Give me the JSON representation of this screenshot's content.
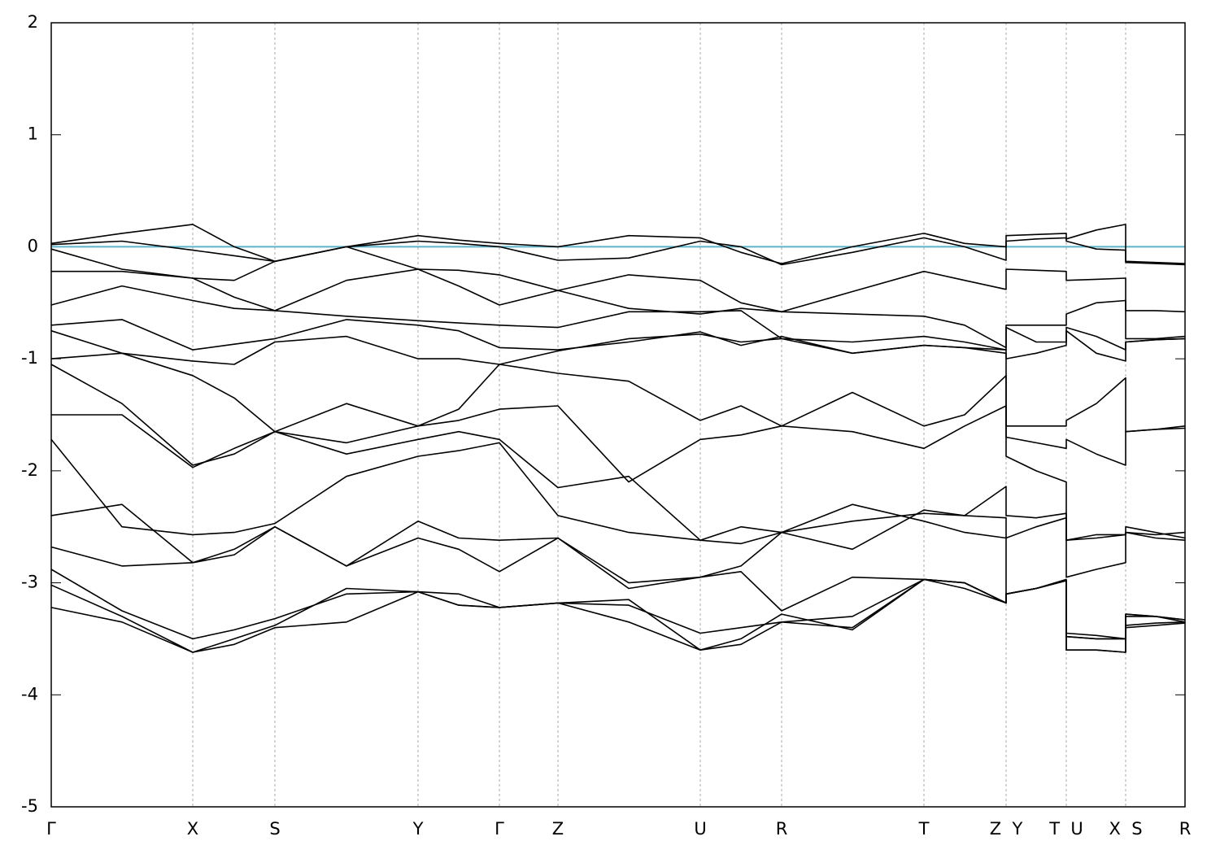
{
  "chart_data": {
    "type": "line",
    "x": [
      0,
      0.87,
      1.74,
      2.25,
      2.75,
      3.63,
      4.51,
      5.01,
      5.51,
      6.23,
      7.1,
      7.98,
      8.48,
      8.98,
      9.85,
      10.73,
      11.23,
      11.74,
      11.74,
      12.11,
      12.48,
      12.48,
      12.85,
      13.21,
      13.21,
      13.58,
      13.94
    ],
    "xlim": [
      0,
      13.94
    ],
    "xticks": [
      {
        "value": 0,
        "label": "Γ"
      },
      {
        "value": 1.74,
        "label": "X"
      },
      {
        "value": 2.75,
        "label": "S"
      },
      {
        "value": 4.51,
        "label": "Y"
      },
      {
        "value": 5.51,
        "label": "Γ"
      },
      {
        "value": 6.23,
        "label": "Z"
      },
      {
        "value": 7.98,
        "label": "U"
      },
      {
        "value": 8.98,
        "label": "R"
      },
      {
        "value": 10.73,
        "label": "T"
      },
      {
        "value": 11.74,
        "label": "Z  Y"
      },
      {
        "value": 12.48,
        "label": "T  U"
      },
      {
        "value": 13.21,
        "label": "X  S"
      },
      {
        "value": 13.94,
        "label": "R"
      }
    ],
    "ylim": [
      -5,
      2
    ],
    "yticks": [
      -5,
      -4,
      -3,
      -2,
      -1,
      0,
      1,
      2
    ],
    "grid": true,
    "fermi_level": 0,
    "fermi_color": "#5fb3c9",
    "series": [
      {
        "color": "#000000",
        "values": [
          0.03,
          0.12,
          0.2,
          0.0,
          -0.13,
          0.0,
          0.1,
          0.06,
          0.03,
          0.0,
          0.1,
          0.08,
          -0.05,
          -0.15,
          0.0,
          0.12,
          0.03,
          0.0,
          0.1,
          0.11,
          0.12,
          0.07,
          0.15,
          0.2,
          -0.13,
          -0.14,
          -0.15
        ]
      },
      {
        "color": "#000000",
        "values": [
          0.02,
          0.05,
          -0.03,
          -0.08,
          -0.13,
          0.0,
          0.05,
          0.03,
          0.0,
          -0.12,
          -0.1,
          0.05,
          0.0,
          -0.16,
          -0.05,
          0.08,
          0.0,
          -0.12,
          0.05,
          0.07,
          0.08,
          0.05,
          -0.02,
          -0.03,
          -0.14,
          -0.15,
          -0.16
        ]
      },
      {
        "color": "#000000",
        "values": [
          -0.02,
          -0.2,
          -0.28,
          -0.45,
          -0.57,
          -0.3,
          -0.2,
          -0.21,
          -0.25,
          -0.39,
          -0.25,
          -0.3,
          -0.5,
          -0.58,
          -0.4,
          -0.22,
          -0.3,
          -0.38,
          -0.2,
          -0.21,
          -0.22,
          -0.3,
          -0.29,
          -0.28,
          -0.57,
          -0.57,
          -0.58
        ]
      },
      {
        "color": "#000000",
        "values": [
          -0.22,
          -0.22,
          -0.28,
          -0.3,
          -0.13,
          0.0,
          -0.2,
          -0.35,
          -0.52,
          -0.39,
          -0.55,
          -0.6,
          -0.55,
          -0.58,
          -0.6,
          -0.62,
          -0.7,
          -0.9,
          -0.7,
          -0.7,
          -0.7,
          -0.6,
          -0.5,
          -0.48,
          -0.82,
          -0.82,
          -0.8
        ]
      },
      {
        "color": "#000000",
        "values": [
          -0.52,
          -0.35,
          -0.48,
          -0.55,
          -0.57,
          -0.62,
          -0.66,
          -0.68,
          -0.7,
          -0.72,
          -0.58,
          -0.58,
          -0.57,
          -0.82,
          -0.85,
          -0.8,
          -0.85,
          -0.92,
          -0.72,
          -0.85,
          -0.85,
          -0.72,
          -0.8,
          -0.92,
          -0.85,
          -0.83,
          -0.82
        ]
      },
      {
        "color": "#000000",
        "values": [
          -0.7,
          -0.65,
          -0.92,
          -0.87,
          -0.82,
          -0.65,
          -0.7,
          -0.75,
          -0.9,
          -0.92,
          -0.85,
          -0.76,
          -0.88,
          -0.8,
          -0.95,
          -0.88,
          -0.9,
          -0.92,
          -1.0,
          -0.95,
          -0.88,
          -0.75,
          -0.95,
          -1.02,
          -0.85,
          -0.83,
          -0.82
        ]
      },
      {
        "color": "#000000",
        "values": [
          -0.75,
          -0.95,
          -1.02,
          -1.05,
          -0.85,
          -0.8,
          -1.0,
          -1.0,
          -1.05,
          -0.93,
          -0.82,
          -0.78,
          -0.85,
          -0.82,
          -0.95,
          -0.88,
          -0.9,
          -0.95,
          -1.6,
          -1.6,
          -1.6,
          -1.55,
          -1.4,
          -1.17,
          -1.65,
          -1.63,
          -1.6
        ]
      },
      {
        "color": "#000000",
        "values": [
          -1.0,
          -0.95,
          -1.15,
          -1.35,
          -1.65,
          -1.4,
          -1.6,
          -1.45,
          -1.05,
          -1.13,
          -1.2,
          -1.55,
          -1.42,
          -1.6,
          -1.3,
          -1.6,
          -1.5,
          -1.15,
          -1.7,
          -1.75,
          -1.8,
          -1.72,
          -1.85,
          -1.95,
          -1.65,
          -1.63,
          -1.62
        ]
      },
      {
        "color": "#000000",
        "values": [
          -1.05,
          -1.4,
          -1.95,
          -1.85,
          -1.65,
          -1.75,
          -1.6,
          -1.55,
          -1.45,
          -1.42,
          -2.1,
          -1.72,
          -1.68,
          -1.6,
          -1.65,
          -1.8,
          -1.6,
          -1.42,
          -1.87,
          -2.0,
          -2.1,
          -2.62,
          -2.6,
          -2.57,
          -2.55,
          -2.57,
          -2.55
        ]
      },
      {
        "color": "#000000",
        "values": [
          -1.5,
          -1.5,
          -1.97,
          -1.8,
          -1.65,
          -1.85,
          -1.72,
          -1.65,
          -1.72,
          -2.15,
          -2.05,
          -2.62,
          -2.5,
          -2.55,
          -2.7,
          -2.35,
          -2.4,
          -2.14,
          -2.4,
          -2.42,
          -2.38,
          -2.62,
          -2.57,
          -2.57,
          -2.5,
          -2.55,
          -2.6
        ]
      },
      {
        "color": "#000000",
        "values": [
          -1.72,
          -2.5,
          -2.57,
          -2.55,
          -2.47,
          -2.05,
          -1.87,
          -1.82,
          -1.75,
          -2.4,
          -2.55,
          -2.62,
          -2.65,
          -2.55,
          -2.45,
          -2.38,
          -2.4,
          -2.42,
          -2.6,
          -2.5,
          -2.42,
          -2.95,
          -2.88,
          -2.82,
          -2.55,
          -2.6,
          -2.62
        ]
      },
      {
        "color": "#000000",
        "values": [
          -2.4,
          -2.3,
          -2.82,
          -2.75,
          -2.5,
          -2.85,
          -2.45,
          -2.6,
          -2.62,
          -2.6,
          -3.0,
          -2.95,
          -2.85,
          -2.55,
          -2.3,
          -2.45,
          -2.55,
          -2.6,
          -3.1,
          -3.05,
          -2.97,
          -3.45,
          -3.47,
          -3.5,
          -3.28,
          -3.3,
          -3.33
        ]
      },
      {
        "color": "#000000",
        "values": [
          -2.68,
          -2.85,
          -2.82,
          -2.7,
          -2.5,
          -2.85,
          -2.6,
          -2.7,
          -2.9,
          -2.6,
          -3.05,
          -2.95,
          -2.9,
          -3.25,
          -2.95,
          -2.97,
          -3.0,
          -3.18,
          -3.1,
          -3.05,
          -2.98,
          -3.48,
          -3.5,
          -3.5,
          -3.3,
          -3.3,
          -3.35
        ]
      },
      {
        "color": "#000000",
        "values": [
          -2.88,
          -3.25,
          -3.5,
          -3.42,
          -3.32,
          -3.1,
          -3.08,
          -3.1,
          -3.22,
          -3.18,
          -3.2,
          -3.45,
          -3.4,
          -3.35,
          -3.3,
          -2.97,
          -3.05,
          -3.18,
          -3.1,
          -3.05,
          -2.98,
          -3.6,
          -3.6,
          -3.62,
          -3.38,
          -3.36,
          -3.35
        ]
      },
      {
        "color": "#000000",
        "values": [
          -3.02,
          -3.3,
          -3.62,
          -3.5,
          -3.38,
          -3.05,
          -3.08,
          -3.2,
          -3.22,
          -3.18,
          -3.35,
          -3.6,
          -3.5,
          -3.28,
          -3.42,
          -2.97,
          -3.0,
          -3.18,
          -3.1,
          -3.05,
          -2.98,
          -3.6,
          -3.6,
          -3.62,
          -3.4,
          -3.38,
          -3.36
        ]
      },
      {
        "color": "#000000",
        "values": [
          -3.22,
          -3.35,
          -3.62,
          -3.55,
          -3.4,
          -3.35,
          -3.08,
          -3.2,
          -3.22,
          -3.18,
          -3.15,
          -3.6,
          -3.55,
          -3.35,
          -3.4,
          -2.97,
          -3.0,
          -3.18,
          -3.1,
          -3.05,
          -2.98,
          -3.48,
          -3.5,
          -3.5,
          -3.28,
          -3.3,
          -3.33
        ]
      }
    ]
  }
}
